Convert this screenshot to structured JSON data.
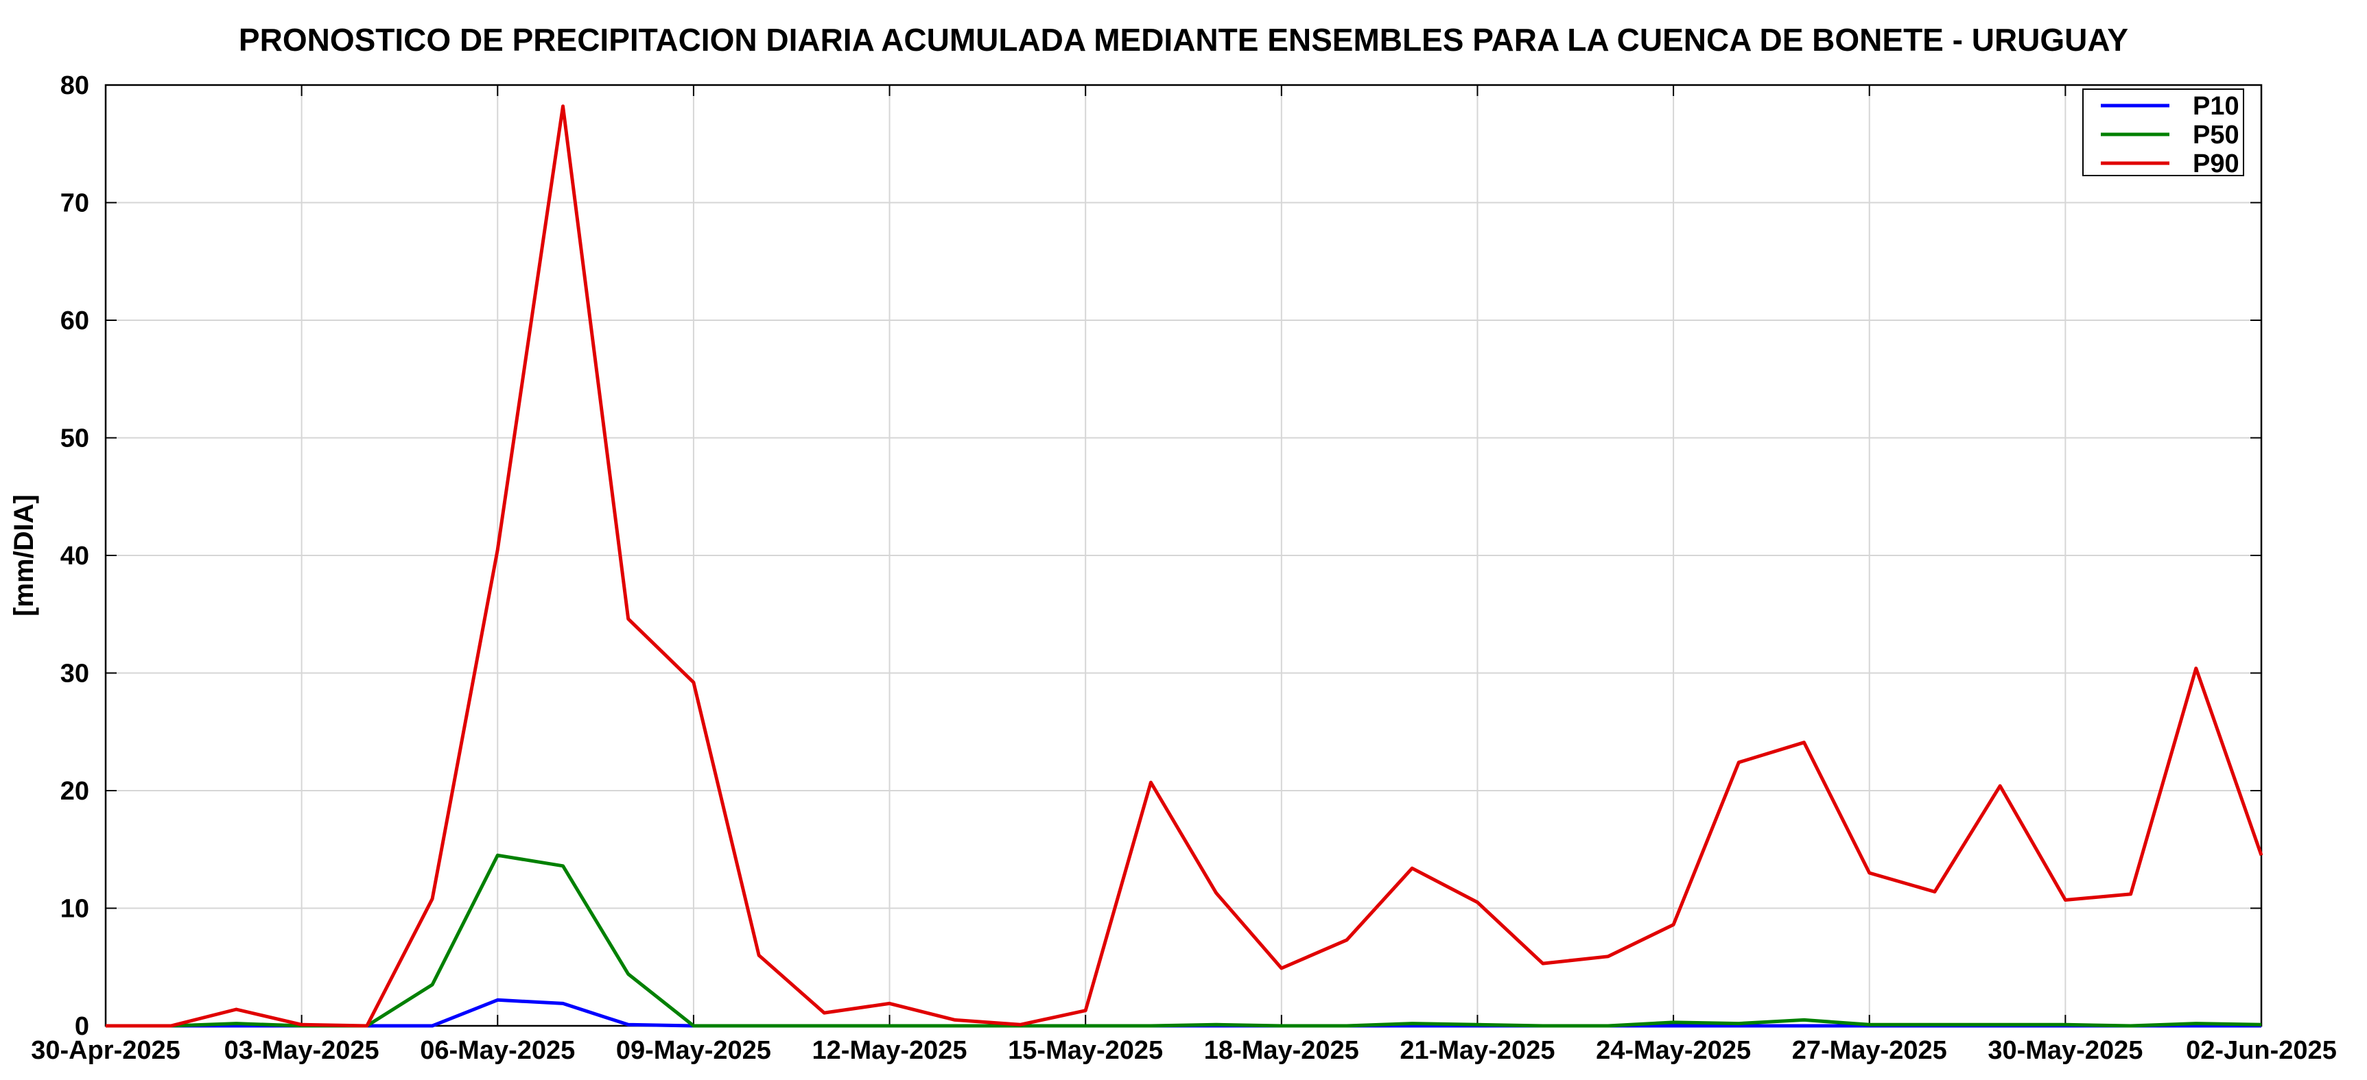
{
  "chart_data": {
    "type": "line",
    "title": "PRONOSTICO DE PRECIPITACION DIARIA ACUMULADA MEDIANTE ENSEMBLES PARA LA CUENCA DE BONETE - URUGUAY",
    "xlabel": "",
    "ylabel": "[mm/DIA]",
    "ylim": [
      0,
      80
    ],
    "yticks": [
      0,
      10,
      20,
      30,
      40,
      50,
      60,
      70,
      80
    ],
    "xlim": [
      "2025-04-30",
      "2025-06-02"
    ],
    "xtick_labels": [
      "30-Apr-2025",
      "03-May-2025",
      "06-May-2025",
      "09-May-2025",
      "12-May-2025",
      "15-May-2025",
      "18-May-2025",
      "21-May-2025",
      "24-May-2025",
      "27-May-2025",
      "30-May-2025",
      "02-Jun-2025"
    ],
    "grid": true,
    "legend_position": "top-right",
    "x": [
      "2025-04-30",
      "2025-05-01",
      "2025-05-02",
      "2025-05-03",
      "2025-05-04",
      "2025-05-05",
      "2025-05-06",
      "2025-05-07",
      "2025-05-08",
      "2025-05-09",
      "2025-05-10",
      "2025-05-11",
      "2025-05-12",
      "2025-05-13",
      "2025-05-14",
      "2025-05-15",
      "2025-05-16",
      "2025-05-17",
      "2025-05-18",
      "2025-05-19",
      "2025-05-20",
      "2025-05-21",
      "2025-05-22",
      "2025-05-23",
      "2025-05-24",
      "2025-05-25",
      "2025-05-26",
      "2025-05-27",
      "2025-05-28",
      "2025-05-29",
      "2025-05-30",
      "2025-05-31",
      "2025-06-01",
      "2025-06-02"
    ],
    "series": [
      {
        "name": "P10",
        "color": "#0000ff",
        "values": [
          0,
          0,
          0,
          0,
          0,
          0,
          2.2,
          1.9,
          0.1,
          0,
          0,
          0,
          0,
          0,
          0,
          0,
          0,
          0,
          0,
          0,
          0,
          0,
          0,
          0,
          0,
          0,
          0,
          0,
          0,
          0,
          0,
          0,
          0,
          0
        ]
      },
      {
        "name": "P50",
        "color": "#008000",
        "values": [
          0,
          0,
          0.2,
          0,
          0,
          3.5,
          14.5,
          13.6,
          4.4,
          0,
          0,
          0,
          0,
          0,
          0,
          0,
          0,
          0.1,
          0,
          0,
          0.2,
          0.1,
          0,
          0,
          0.3,
          0.2,
          0.5,
          0.1,
          0.1,
          0.1,
          0.1,
          0,
          0.2,
          0.1
        ]
      },
      {
        "name": "P90",
        "color": "#e00000",
        "values": [
          0,
          0,
          1.4,
          0.1,
          0,
          10.8,
          40.5,
          78.2,
          34.6,
          29.2,
          6.0,
          1.1,
          1.9,
          0.5,
          0.1,
          1.3,
          20.7,
          11.3,
          4.9,
          7.3,
          13.4,
          10.5,
          5.3,
          5.9,
          8.6,
          22.4,
          24.1,
          13.0,
          11.4,
          20.4,
          10.7,
          11.2,
          30.4,
          14.5
        ]
      }
    ]
  }
}
